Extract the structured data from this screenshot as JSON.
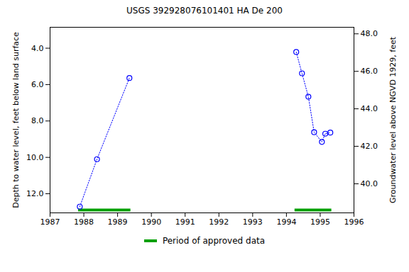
{
  "chart_data": {
    "type": "line",
    "title": "USGS 392928076101401 HA De 200",
    "y_label": "Depth to water level, feet below land surface",
    "y2_label": "Groundwater level above NGVD 1929, feet",
    "series": [
      {
        "x": [
          1987.88,
          1988.39,
          1989.35
        ],
        "values": [
          12.71,
          10.1,
          5.64
        ],
        "color": "#0000ff",
        "marker": "circle",
        "line_style": "dotted"
      },
      {
        "x": [
          1994.29,
          1994.46,
          1994.65,
          1994.82,
          1995.05,
          1995.15,
          1995.3
        ],
        "values": [
          4.21,
          5.38,
          6.67,
          8.62,
          9.15,
          8.7,
          8.64
        ],
        "color": "#0000ff",
        "marker": "circle",
        "line_style": "dotted"
      }
    ],
    "approved_periods": {
      "name": "Period of approved data",
      "color": "#00a000",
      "ranges": [
        [
          1987.84,
          1989.39
        ],
        [
          1994.25,
          1995.34
        ]
      ]
    },
    "xlim": [
      1987,
      1996
    ],
    "xticks": [
      1987,
      1988,
      1989,
      1990,
      1991,
      1992,
      1993,
      1994,
      1995,
      1996
    ],
    "ylim": [
      13.05,
      2.85
    ],
    "yticks": [
      {
        "value": 4,
        "label": "4.0"
      },
      {
        "value": 6,
        "label": "6.0"
      },
      {
        "value": 8,
        "label": "8.0"
      },
      {
        "value": 10,
        "label": "10.0"
      },
      {
        "value": 12,
        "label": "12.0"
      }
    ],
    "y2lim": [
      38.45,
      48.35
    ],
    "y2ticks": [
      {
        "value": 40,
        "label": "40.0"
      },
      {
        "value": 42,
        "label": "42.0"
      },
      {
        "value": 44,
        "label": "44.0"
      },
      {
        "value": 46,
        "label": "46.0"
      },
      {
        "value": 48,
        "label": "48.0"
      }
    ],
    "legend": "bottom",
    "grid": false
  }
}
